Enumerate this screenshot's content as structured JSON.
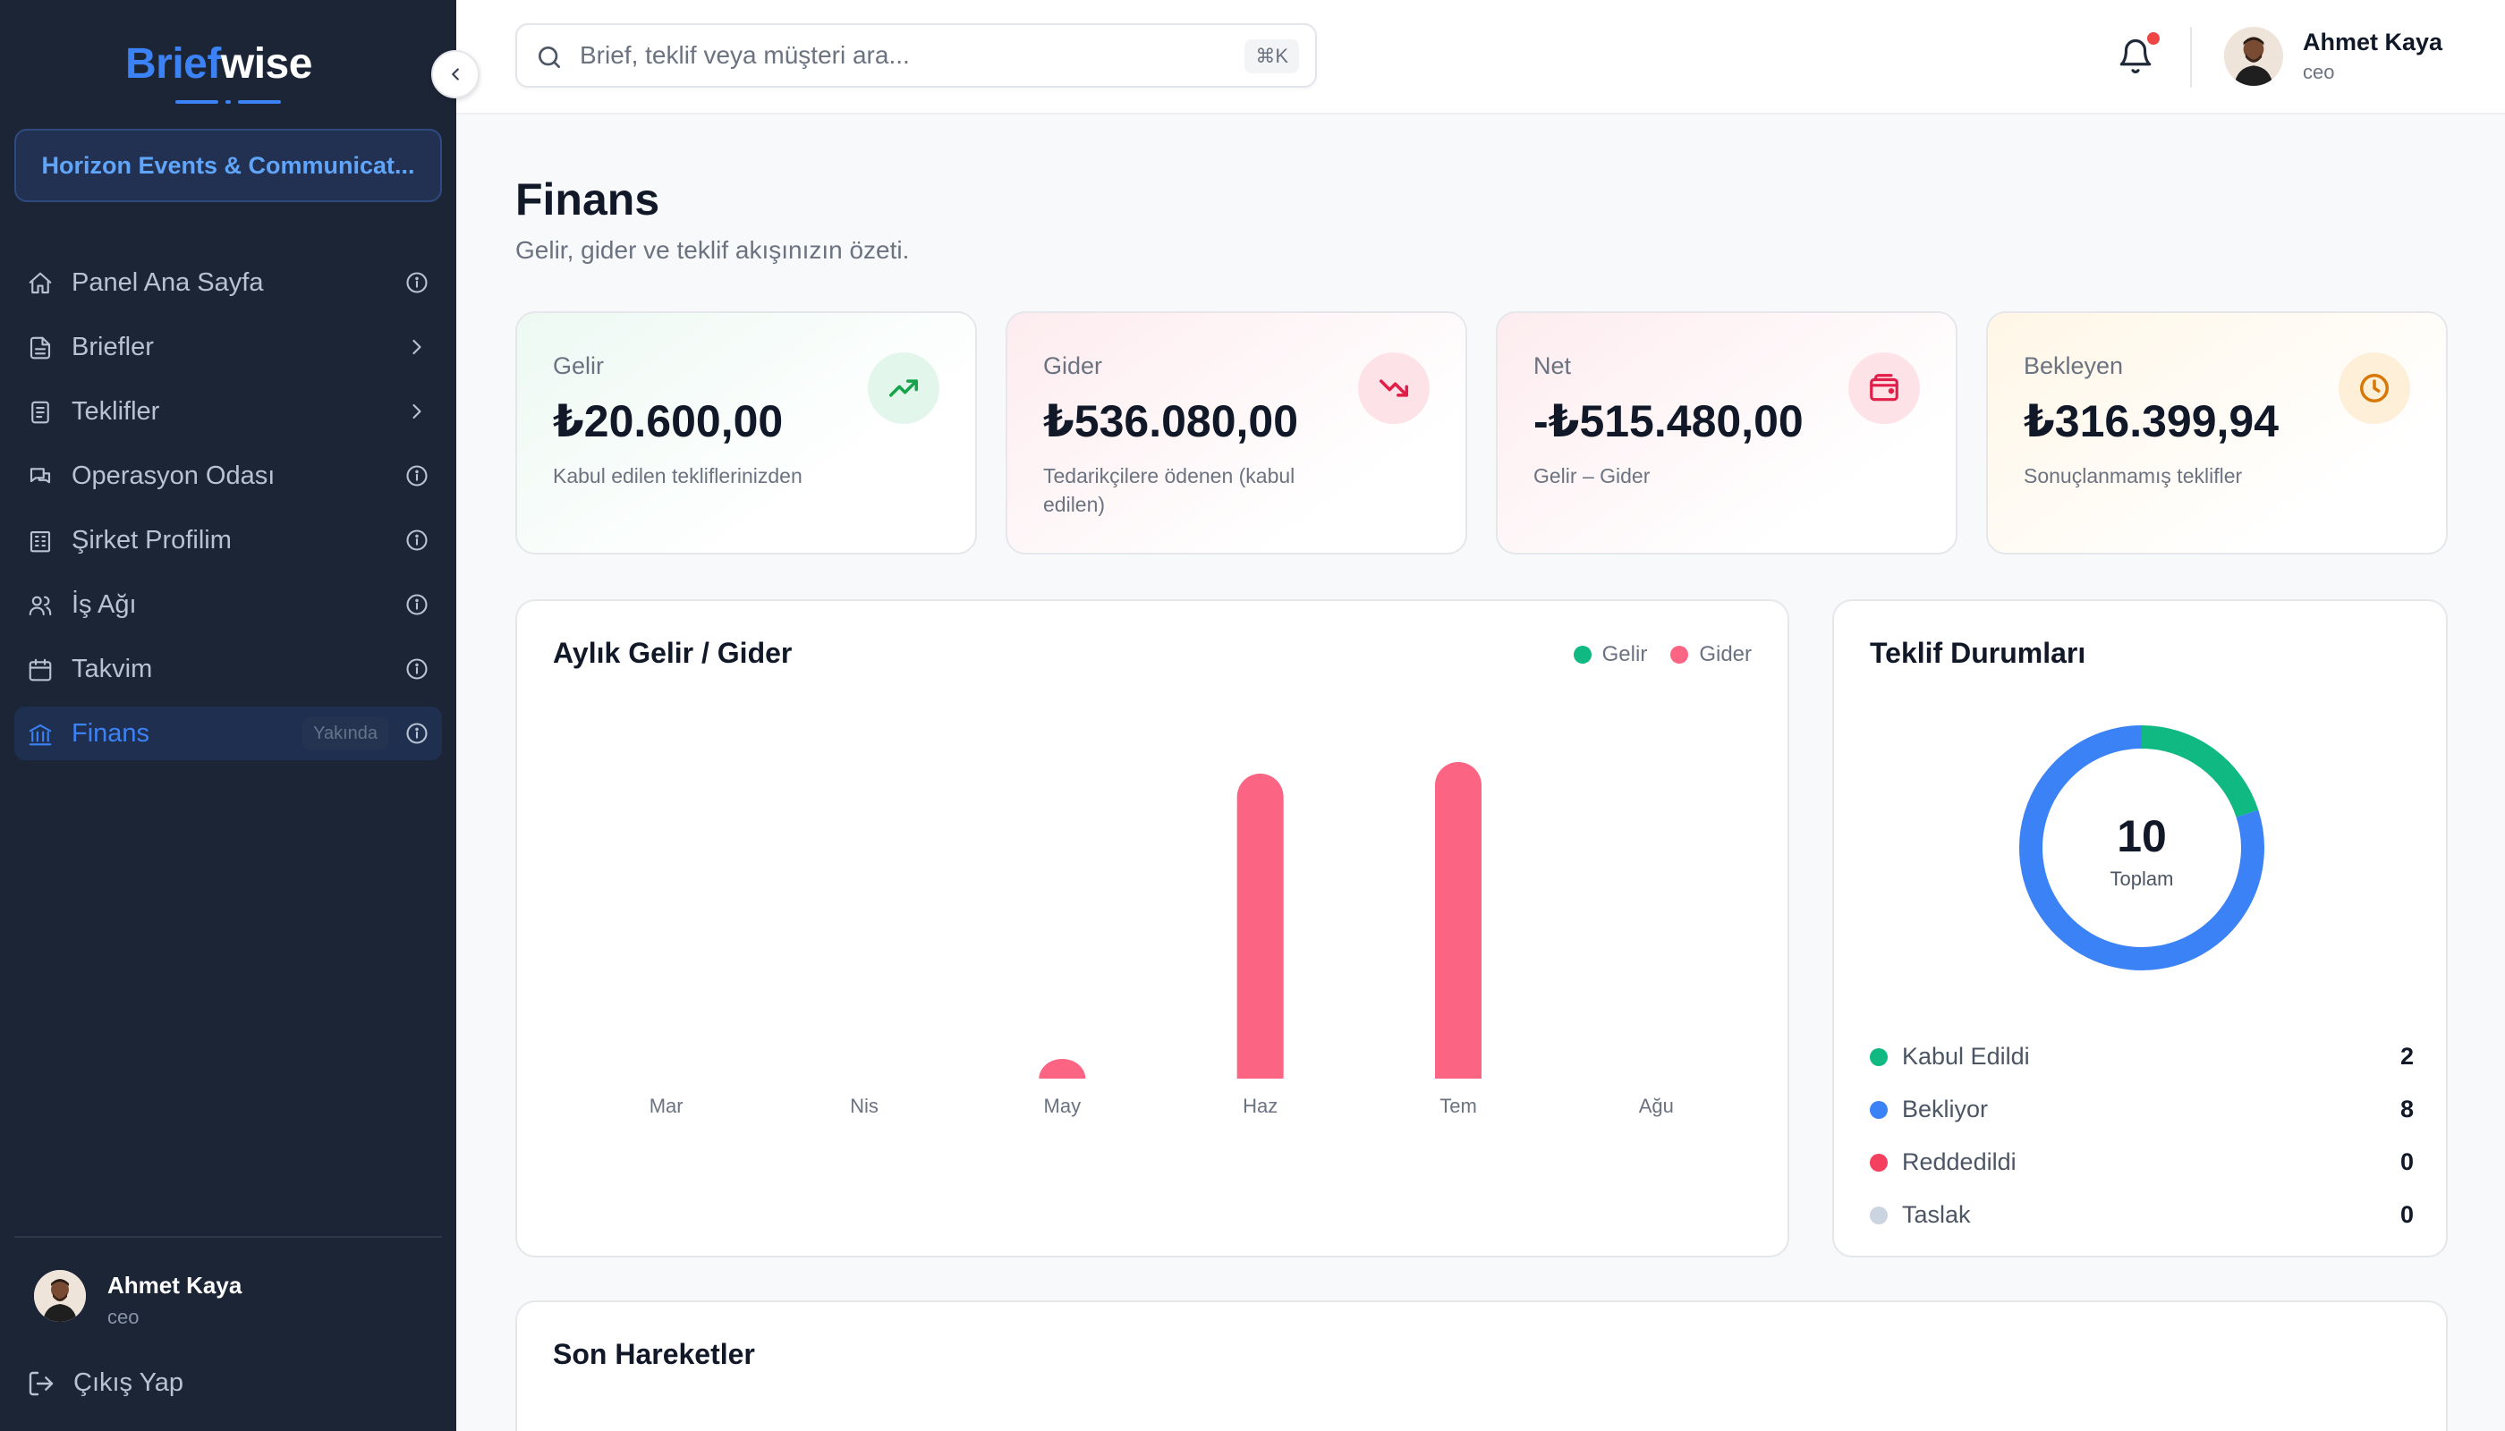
{
  "app": {
    "logo_part1": "Brief",
    "logo_part2": "wise",
    "company": "Horizon Events & Communicat..."
  },
  "sidebar": {
    "items": [
      {
        "label": "Panel Ana Sayfa",
        "icon": "home-icon",
        "right": "info-icon"
      },
      {
        "label": "Briefler",
        "icon": "document-icon",
        "right": "chevron-right-icon"
      },
      {
        "label": "Teklifler",
        "icon": "clipboard-icon",
        "right": "chevron-right-icon"
      },
      {
        "label": "Operasyon Odası",
        "icon": "chat-icon",
        "right": "info-icon"
      },
      {
        "label": "Şirket Profilim",
        "icon": "building-icon",
        "right": "info-icon"
      },
      {
        "label": "İş Ağı",
        "icon": "users-icon",
        "right": "info-icon"
      },
      {
        "label": "Takvim",
        "icon": "calendar-icon",
        "right": "info-icon"
      },
      {
        "label": "Finans",
        "icon": "bank-icon",
        "right": "info-icon",
        "badge": "Yakında",
        "active": true
      }
    ],
    "user": {
      "name": "Ahmet Kaya",
      "role": "ceo"
    },
    "logout": "Çıkış Yap"
  },
  "topbar": {
    "search_placeholder": "Brief, teklif veya müşteri ara...",
    "shortcut": "⌘K",
    "user": {
      "name": "Ahmet Kaya",
      "role": "ceo"
    }
  },
  "page": {
    "title": "Finans",
    "subtitle": "Gelir, gider ve teklif akışınızın özeti."
  },
  "stats": [
    {
      "title": "Gelir",
      "value": "₺20.600,00",
      "desc": "Kabul edilen tekliflerinizden",
      "icon": "trending-up-icon",
      "color": "#16a34a"
    },
    {
      "title": "Gider",
      "value": "₺536.080,00",
      "desc": "Tedarikçilere ödenen (kabul edilen)",
      "icon": "trending-down-icon",
      "color": "#e11d48"
    },
    {
      "title": "Net",
      "value": "-₺515.480,00",
      "desc": "Gelir – Gider",
      "icon": "wallet-icon",
      "color": "#e11d48"
    },
    {
      "title": "Bekleyen",
      "value": "₺316.399,94",
      "desc": "Sonuçlanmamış teklifler",
      "icon": "clock-icon",
      "color": "#d97706"
    }
  ],
  "monthly": {
    "title": "Aylık Gelir / Gider",
    "legend": {
      "gelir": "Gelir",
      "gider": "Gider"
    }
  },
  "teklif": {
    "title": "Teklif Durumları",
    "total": "10",
    "total_label": "Toplam",
    "items": [
      {
        "label": "Kabul Edildi",
        "count": "2",
        "color": "#10b981"
      },
      {
        "label": "Bekliyor",
        "count": "8",
        "color": "#3b82f6"
      },
      {
        "label": "Reddedildi",
        "count": "0",
        "color": "#f43f5e"
      },
      {
        "label": "Taslak",
        "count": "0",
        "color": "#cbd5e1"
      }
    ]
  },
  "recent": {
    "title": "Son Hareketler"
  },
  "chart_data": [
    {
      "type": "bar",
      "categories": [
        "Mar",
        "Nis",
        "May",
        "Haz",
        "Tem",
        "Ağu"
      ],
      "series": [
        {
          "name": "Gelir",
          "color": "#10b981",
          "values": [
            0,
            0,
            0,
            0,
            0,
            0
          ]
        },
        {
          "name": "Gider",
          "color": "#fb6482",
          "values": [
            0,
            0,
            6500,
            262000,
            272000,
            0
          ]
        }
      ],
      "ylim": [
        0,
        272000
      ],
      "grid": false,
      "legend": "top-right"
    },
    {
      "type": "pie",
      "labels": [
        "Kabul Edildi",
        "Bekliyor",
        "Reddedildi",
        "Taslak"
      ],
      "values": [
        2,
        8,
        0,
        0
      ],
      "colors": [
        "#10b981",
        "#3b82f6",
        "#f43f5e",
        "#cbd5e1"
      ]
    }
  ]
}
